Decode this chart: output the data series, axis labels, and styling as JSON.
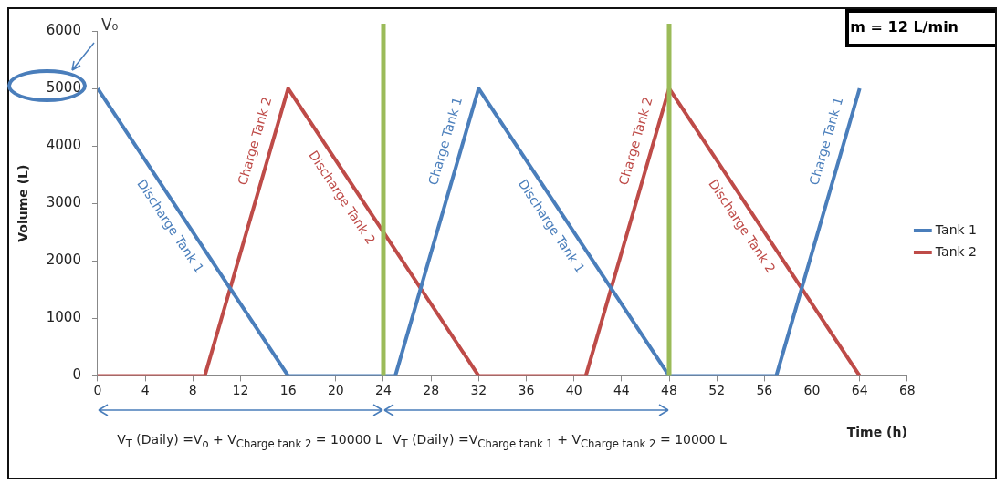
{
  "chart_data": {
    "type": "line",
    "xlabel": "Time (h)",
    "ylabel": "Volume (L)",
    "xlim": [
      0,
      68
    ],
    "xticks": [
      0,
      4,
      8,
      12,
      16,
      20,
      24,
      28,
      32,
      36,
      40,
      44,
      48,
      52,
      56,
      60,
      64,
      68
    ],
    "ylim": [
      0,
      6000
    ],
    "yticks": [
      0,
      1000,
      2000,
      3000,
      4000,
      5000,
      6000
    ],
    "grid": false,
    "legend": "right",
    "marker": "none",
    "line_style": "solid",
    "series": [
      {
        "name": "Tank 1",
        "color": "#4a7ebb",
        "x": [
          0,
          16,
          25,
          32,
          48,
          57,
          64
        ],
        "values": [
          5000,
          0,
          0,
          5000,
          0,
          0,
          5000
        ]
      },
      {
        "name": "Tank 2",
        "color": "#be4b48",
        "x": [
          0,
          9,
          16,
          32,
          41,
          48,
          64
        ],
        "values": [
          0,
          0,
          5000,
          0,
          0,
          5000,
          0
        ]
      }
    ],
    "ref_lines": [
      {
        "axis": "x",
        "value": 24,
        "color": "#9bbb59"
      },
      {
        "axis": "x",
        "value": 48,
        "color": "#9bbb59"
      }
    ],
    "annotations": [
      "m = 12 L/min",
      "V$_{T}$ (Daily) =V$_{o}$ + V$_{Charge tank 2}$ = 10000 L",
      "V$_{T}$ (Daily) =V$_{Charge tank 1}$ + V$_{Charge tank 2}$ = 10000 L",
      "V₀",
      {
        "text": "Discharge Tank 1",
        "x": 7.2,
        "y": 2750
      },
      {
        "text": "Charge Tank 2",
        "x": 14.6,
        "y": 4000
      },
      {
        "text": "Discharge Tank 2",
        "x": 21.6,
        "y": 3250
      },
      {
        "text": "Charge Tank 1",
        "x": 30.6,
        "y": 4000
      },
      {
        "text": "Discharge Tank 1",
        "x": 39.2,
        "y": 2750
      },
      {
        "text": "Charge Tank 2",
        "x": 46.6,
        "y": 4000
      },
      {
        "text": "Discharge Tank 2",
        "x": 55.2,
        "y": 2750
      },
      {
        "text": "Charge Tank 1",
        "x": 62.6,
        "y": 4000
      }
    ]
  }
}
